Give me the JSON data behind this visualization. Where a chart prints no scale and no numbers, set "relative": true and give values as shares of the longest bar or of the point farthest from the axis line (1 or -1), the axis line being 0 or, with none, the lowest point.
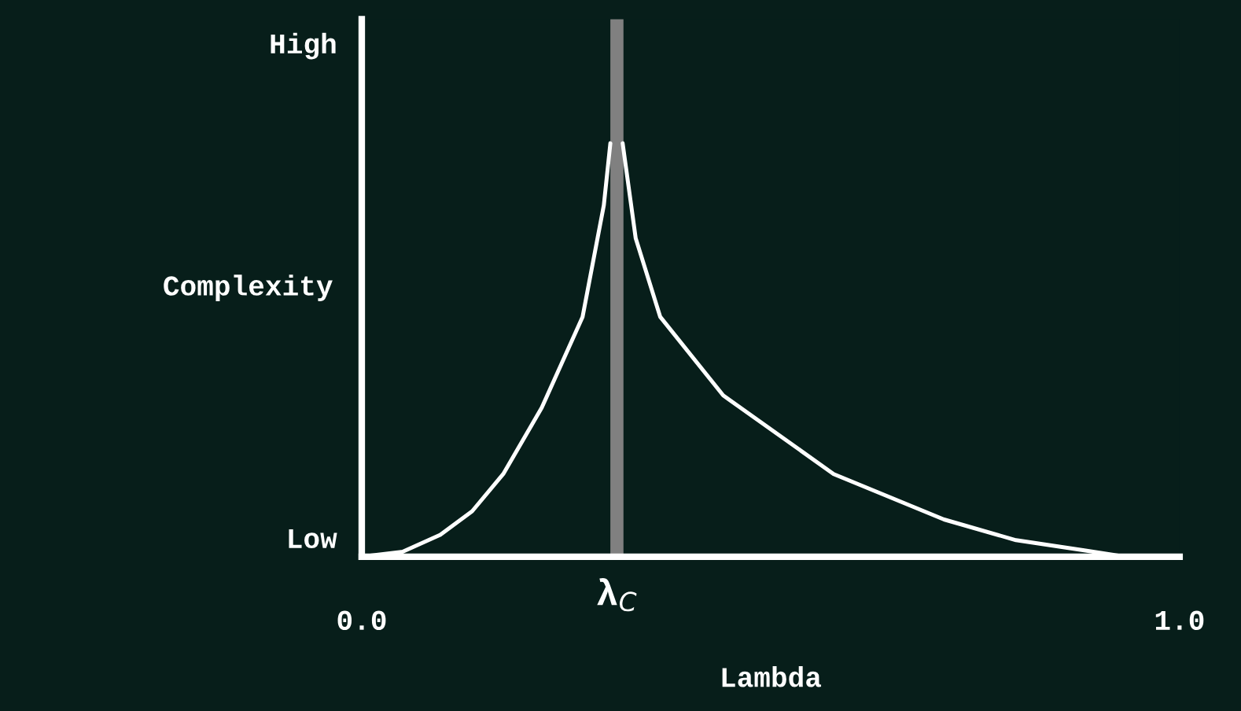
{
  "chart_data": {
    "type": "line",
    "relative": true,
    "xlabel": "Lambda",
    "ylabel": "Complexity",
    "xlim": [
      0,
      1
    ],
    "xticks": [
      {
        "value": 0,
        "label": "0.0"
      },
      {
        "value": 1,
        "label": "1.0"
      }
    ],
    "annotations": [
      "Low",
      "High"
    ],
    "ref_lines": [
      {
        "axis": "x",
        "value": 0.312,
        "label": "λ$_{C}$",
        "color": "#808080"
      }
    ],
    "series": [
      {
        "color": "#ffffff",
        "x": [
          0,
          0.05,
          0.096,
          0.135,
          0.173,
          0.22,
          0.27,
          0.296,
          0.304
        ],
        "values": [
          0,
          0.012,
          0.053,
          0.11,
          0.2,
          0.36,
          0.58,
          0.85,
          1
        ]
      },
      {
        "color": "#ffffff",
        "x": [
          0.319,
          0.335,
          0.365,
          0.442,
          0.577,
          0.712,
          0.8,
          0.885,
          0.933
        ],
        "values": [
          1,
          0.77,
          0.58,
          0.39,
          0.2,
          0.09,
          0.04,
          0.015,
          0
        ]
      }
    ]
  }
}
